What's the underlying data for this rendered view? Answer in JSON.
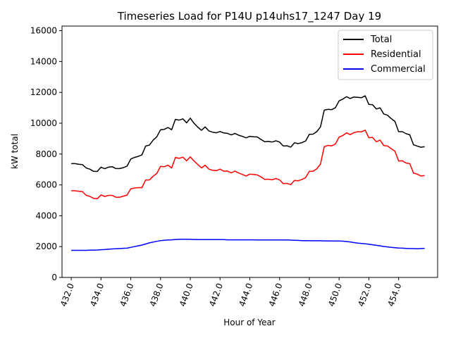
{
  "chart_data": {
    "type": "line",
    "title": "Timeseries Load for P14U p14uhs17_1247  Day 19",
    "xlabel": "Hour of Year",
    "ylabel": "kW total",
    "xlim": [
      431.38,
      456.62
    ],
    "ylim": [
      0,
      16300
    ],
    "x_ticks": [
      432,
      434,
      436,
      438,
      440,
      442,
      444,
      446,
      448,
      450,
      452,
      454
    ],
    "x_tick_labels": [
      "432.0",
      "434.0",
      "436.0",
      "438.0",
      "440.0",
      "442.0",
      "444.0",
      "446.0",
      "448.0",
      "450.0",
      "452.0",
      "454.0"
    ],
    "y_ticks": [
      0,
      2000,
      4000,
      6000,
      8000,
      10000,
      12000,
      14000,
      16000
    ],
    "y_tick_labels": [
      "0",
      "2000",
      "4000",
      "6000",
      "8000",
      "10000",
      "12000",
      "14000",
      "16000"
    ],
    "legend_position": "top-right",
    "x_start": 432,
    "x_step": 0.25,
    "series": [
      {
        "name": "Total",
        "color": "#000000",
        "values": [
          7380,
          7380,
          7340,
          7320,
          7100,
          7020,
          6880,
          6870,
          7150,
          7050,
          7150,
          7180,
          7060,
          7060,
          7120,
          7220,
          7680,
          7780,
          7850,
          7950,
          8520,
          8580,
          8900,
          9120,
          9580,
          9600,
          9720,
          9580,
          10250,
          10200,
          10280,
          10020,
          10330,
          10000,
          9750,
          9540,
          9760,
          9500,
          9420,
          9380,
          9460,
          9370,
          9340,
          9240,
          9340,
          9220,
          9150,
          9050,
          9150,
          9120,
          9110,
          8950,
          8800,
          8820,
          8780,
          8860,
          8780,
          8520,
          8540,
          8450,
          8730,
          8680,
          8740,
          8850,
          9280,
          9290,
          9450,
          9760,
          10850,
          10900,
          10880,
          11000,
          11450,
          11560,
          11720,
          11600,
          11700,
          11680,
          11650,
          11780,
          11220,
          11200,
          10920,
          11000,
          10600,
          10520,
          10300,
          10120,
          9450,
          9450,
          9320,
          9250,
          8600,
          8520,
          8440,
          8480
        ]
      },
      {
        "name": "Residential",
        "color": "#ff0000",
        "values": [
          5620,
          5620,
          5590,
          5570,
          5330,
          5250,
          5130,
          5100,
          5350,
          5250,
          5320,
          5320,
          5200,
          5200,
          5270,
          5340,
          5750,
          5800,
          5820,
          5820,
          6320,
          6320,
          6560,
          6740,
          7200,
          7180,
          7280,
          7100,
          7780,
          7720,
          7800,
          7560,
          7820,
          7550,
          7330,
          7100,
          7280,
          7020,
          6950,
          6920,
          7020,
          6890,
          6900,
          6780,
          6890,
          6770,
          6680,
          6580,
          6700,
          6680,
          6650,
          6520,
          6360,
          6370,
          6330,
          6420,
          6330,
          6080,
          6100,
          6020,
          6290,
          6270,
          6350,
          6470,
          6880,
          6880,
          7040,
          7350,
          8480,
          8560,
          8530,
          8650,
          9100,
          9200,
          9380,
          9260,
          9390,
          9450,
          9440,
          9550,
          9060,
          9080,
          8800,
          8910,
          8550,
          8530,
          8350,
          8190,
          7550,
          7560,
          7420,
          7380,
          6760,
          6700,
          6580,
          6600
        ]
      },
      {
        "name": "Commercial",
        "color": "#0000ff",
        "values": [
          1760,
          1760,
          1760,
          1760,
          1760,
          1770,
          1770,
          1780,
          1800,
          1810,
          1830,
          1850,
          1860,
          1870,
          1890,
          1900,
          1950,
          2000,
          2050,
          2100,
          2170,
          2240,
          2290,
          2340,
          2390,
          2410,
          2430,
          2440,
          2460,
          2470,
          2480,
          2480,
          2470,
          2460,
          2450,
          2450,
          2450,
          2450,
          2450,
          2450,
          2450,
          2450,
          2440,
          2440,
          2440,
          2440,
          2440,
          2440,
          2440,
          2440,
          2430,
          2430,
          2430,
          2430,
          2430,
          2430,
          2430,
          2430,
          2430,
          2420,
          2410,
          2400,
          2390,
          2390,
          2380,
          2380,
          2380,
          2380,
          2370,
          2370,
          2360,
          2360,
          2360,
          2350,
          2330,
          2300,
          2260,
          2230,
          2200,
          2180,
          2150,
          2120,
          2080,
          2050,
          2010,
          1980,
          1950,
          1930,
          1910,
          1900,
          1880,
          1870,
          1870,
          1860,
          1870,
          1890
        ]
      }
    ]
  }
}
